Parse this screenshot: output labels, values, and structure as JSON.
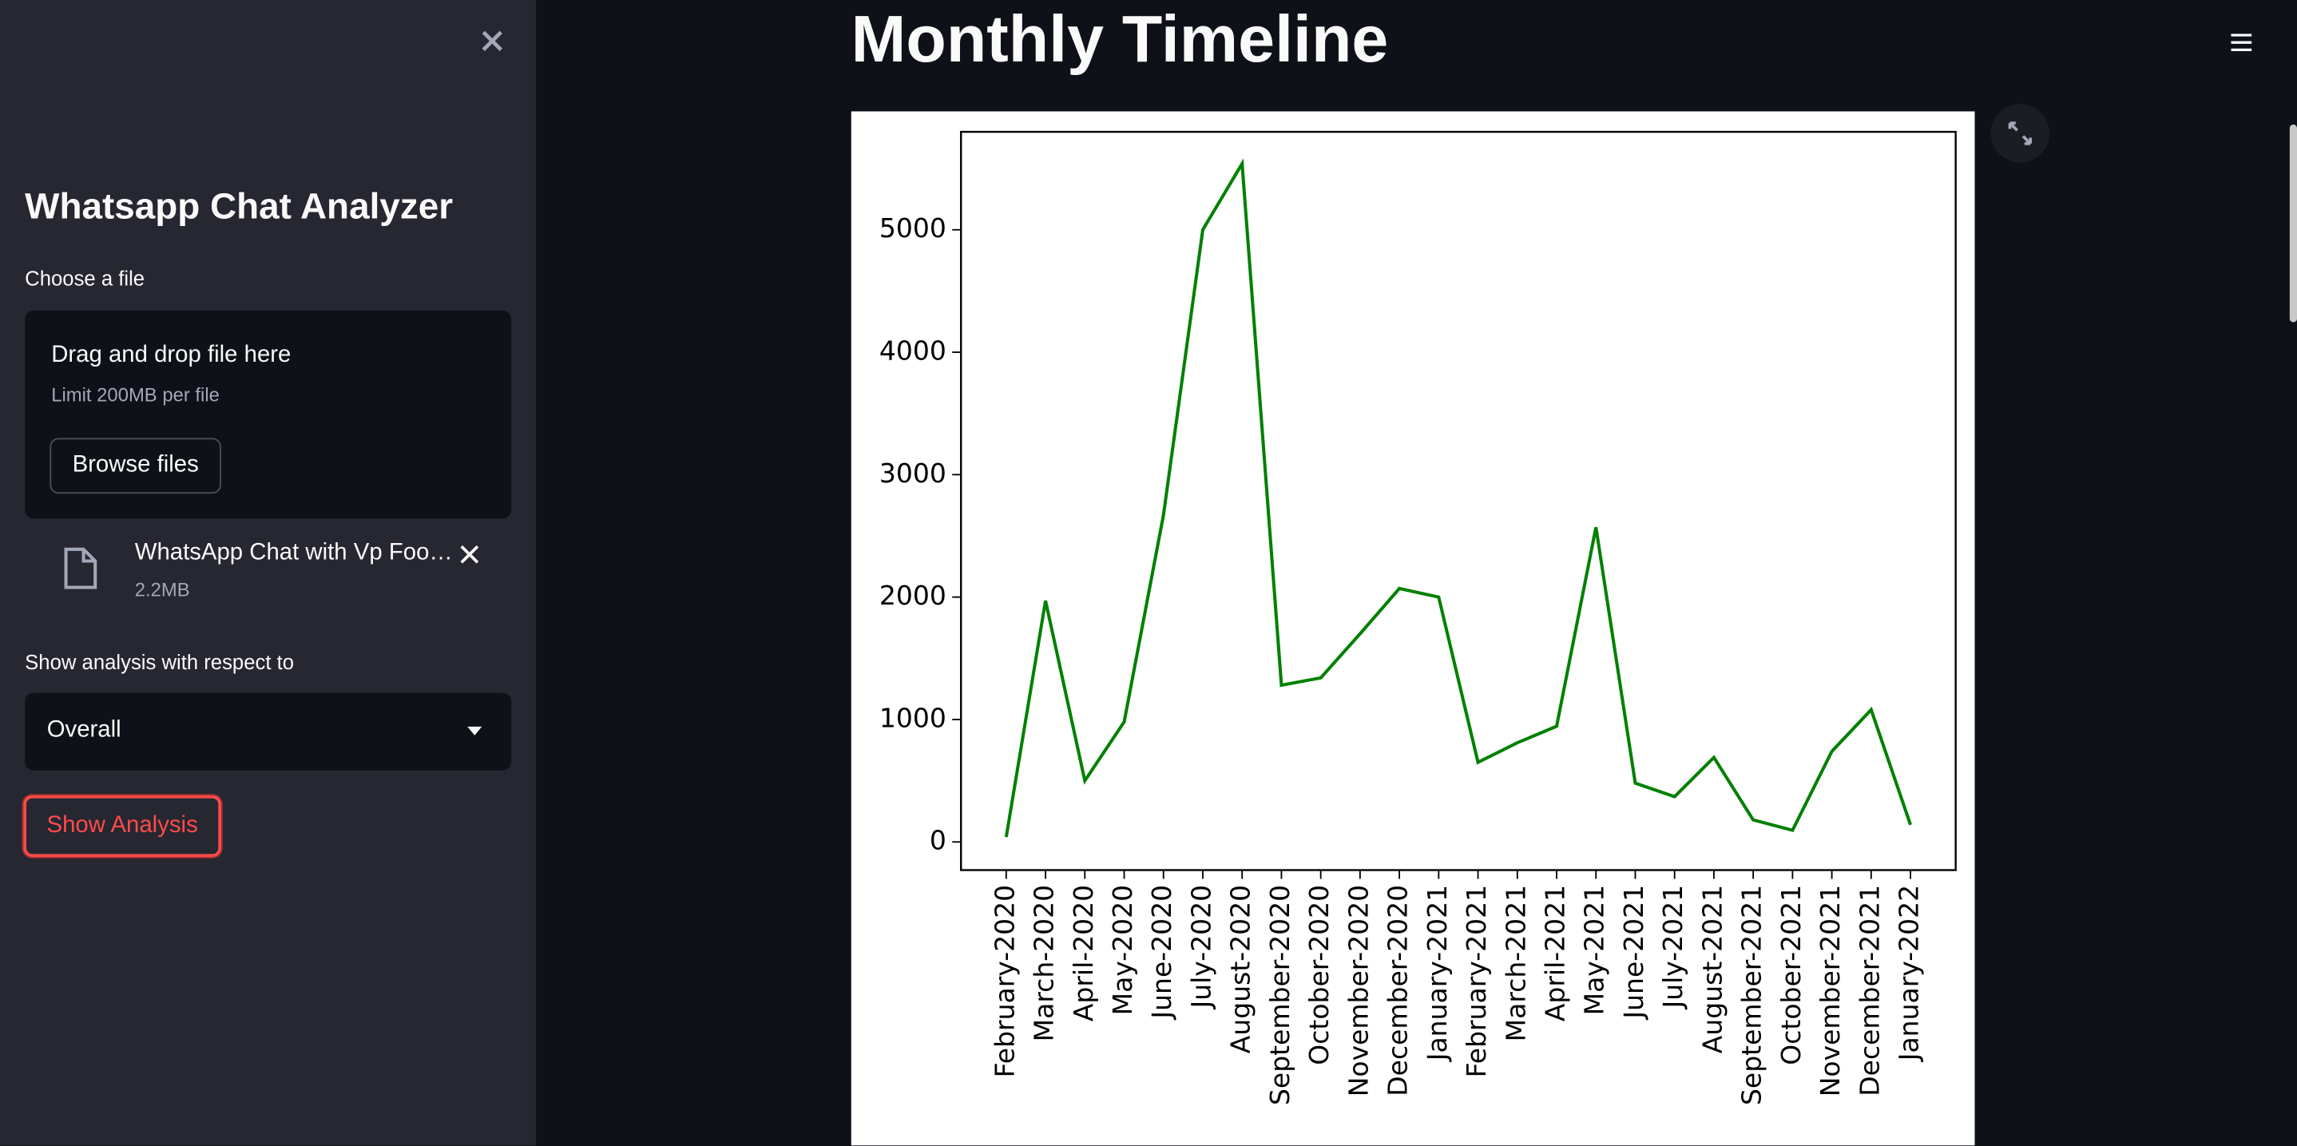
{
  "sidebar": {
    "title": "Whatsapp Chat Analyzer",
    "file_label": "Choose a file",
    "dropzone": {
      "instruction": "Drag and drop file here",
      "limit": "Limit 200MB per file",
      "button": "Browse files"
    },
    "uploaded_file": {
      "name": "WhatsApp Chat with Vp Foo…",
      "size": "2.2MB"
    },
    "select_label": "Show analysis with respect to",
    "select_value": "Overall",
    "button": "Show Analysis"
  },
  "main": {
    "heading": "Monthly Timeline"
  },
  "chart_data": {
    "type": "line",
    "categories": [
      "February-2020",
      "March-2020",
      "April-2020",
      "May-2020",
      "June-2020",
      "July-2020",
      "August-2020",
      "September-2020",
      "October-2020",
      "November-2020",
      "December-2020",
      "January-2021",
      "February-2021",
      "March-2021",
      "April-2021",
      "May-2021",
      "June-2021",
      "July-2021",
      "August-2021",
      "September-2021",
      "October-2021",
      "November-2021",
      "December-2021",
      "January-2022"
    ],
    "values": [
      40,
      1970,
      500,
      980,
      2670,
      5000,
      5540,
      1280,
      1340,
      1700,
      2070,
      2000,
      650,
      810,
      945,
      2570,
      480,
      370,
      690,
      180,
      95,
      740,
      1080,
      140
    ],
    "color": "green",
    "ylim": [
      -230,
      5800
    ],
    "yticks": [
      0,
      1000,
      2000,
      3000,
      4000,
      5000
    ]
  }
}
